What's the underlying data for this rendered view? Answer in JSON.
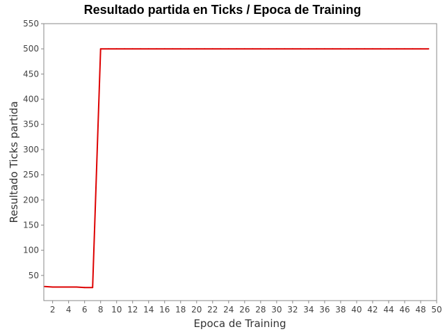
{
  "chart_data": {
    "type": "line",
    "title": "Resultado partida en Ticks / Epoca de Training",
    "xlabel": "Epoca de Training",
    "ylabel": "Resultado Ticks partida",
    "xlim": [
      0.9,
      50
    ],
    "ylim": [
      0,
      550
    ],
    "xticks": [
      2,
      4,
      6,
      8,
      10,
      12,
      14,
      16,
      18,
      20,
      22,
      24,
      26,
      28,
      30,
      32,
      34,
      36,
      38,
      40,
      42,
      44,
      46,
      48,
      50
    ],
    "yticks": [
      50,
      100,
      150,
      200,
      250,
      300,
      350,
      400,
      450,
      500,
      550
    ],
    "grid": false,
    "legend": "none",
    "series": [
      {
        "color": "#dd0000",
        "x": [
          1,
          2,
          3,
          4,
          5,
          6,
          7,
          8,
          9,
          10,
          11,
          12,
          13,
          14,
          15,
          16,
          17,
          18,
          19,
          20,
          21,
          22,
          23,
          24,
          25,
          26,
          27,
          28,
          29,
          30,
          31,
          32,
          33,
          34,
          35,
          36,
          37,
          38,
          39,
          40,
          41,
          42,
          43,
          44,
          45,
          46,
          47,
          48,
          49
        ],
        "y": [
          28,
          27,
          27,
          27,
          27,
          26,
          26,
          500,
          500,
          500,
          500,
          500,
          500,
          500,
          500,
          500,
          500,
          500,
          500,
          500,
          500,
          500,
          500,
          500,
          500,
          500,
          500,
          500,
          500,
          500,
          500,
          500,
          500,
          500,
          500,
          500,
          500,
          500,
          500,
          500,
          500,
          500,
          500,
          500,
          500,
          500,
          500,
          500,
          500
        ]
      }
    ]
  }
}
